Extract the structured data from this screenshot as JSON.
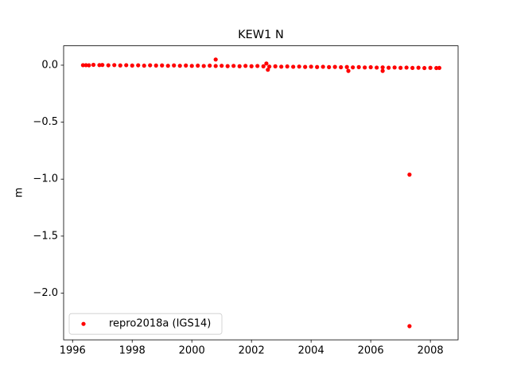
{
  "chart_data": {
    "type": "scatter",
    "title": "KEW1 N",
    "ylabel": "m",
    "xlim": [
      1995.7,
      2008.93
    ],
    "ylim": [
      -2.41,
      0.17
    ],
    "xticks": [
      1996,
      1998,
      2000,
      2002,
      2004,
      2006,
      2008
    ],
    "yticks": [
      {
        "value": 0,
        "label": "0.0"
      },
      {
        "value": -0.5,
        "label": "−0.5"
      },
      {
        "value": -1,
        "label": "−1.0"
      },
      {
        "value": -1.5,
        "label": "−1.5"
      },
      {
        "value": -2,
        "label": "−2.0"
      }
    ],
    "legend": "lower left",
    "grid": false,
    "series": [
      {
        "name": "repro2018a (IGS14)",
        "color": "#ff0000",
        "x": [
          1996.35,
          1996.45,
          1996.55,
          1996.7,
          1996.9,
          1997.0,
          1997.2,
          1997.4,
          1997.6,
          1997.8,
          1998.0,
          1998.2,
          1998.4,
          1998.6,
          1998.8,
          1999.0,
          1999.2,
          1999.4,
          1999.6,
          1999.8,
          2000.0,
          2000.2,
          2000.4,
          2000.6,
          2000.8,
          2001.0,
          2001.2,
          2001.4,
          2001.6,
          2001.8,
          2002.0,
          2002.2,
          2002.4,
          2002.6,
          2002.8,
          2003.0,
          2003.2,
          2003.4,
          2003.6,
          2003.8,
          2004.0,
          2004.2,
          2004.4,
          2004.6,
          2004.8,
          2005.0,
          2005.2,
          2005.4,
          2005.6,
          2005.8,
          2006.0,
          2006.2,
          2006.4,
          2006.6,
          2006.8,
          2007.0,
          2007.2,
          2007.4,
          2007.6,
          2007.8,
          2008.0,
          2008.2,
          2000.8,
          2002.5,
          2002.55,
          2005.25,
          2006.4,
          2007.3,
          2007.3,
          2008.3
        ],
        "values": [
          0.0,
          0.0,
          -0.001,
          0.003,
          0.001,
          0.002,
          -0.001,
          0.001,
          -0.002,
          0.0,
          -0.003,
          -0.001,
          -0.004,
          -0.001,
          -0.003,
          -0.002,
          -0.005,
          -0.002,
          -0.005,
          -0.003,
          -0.006,
          -0.004,
          -0.007,
          -0.004,
          -0.007,
          -0.005,
          -0.008,
          -0.006,
          -0.009,
          -0.006,
          -0.009,
          -0.007,
          -0.01,
          -0.012,
          -0.01,
          -0.013,
          -0.011,
          -0.014,
          -0.012,
          -0.015,
          -0.013,
          -0.016,
          -0.014,
          -0.017,
          -0.015,
          -0.018,
          -0.016,
          -0.019,
          -0.017,
          -0.02,
          -0.018,
          -0.021,
          -0.019,
          -0.022,
          -0.02,
          -0.023,
          -0.021,
          -0.024,
          -0.022,
          -0.025,
          -0.023,
          -0.025,
          0.05,
          0.015,
          -0.04,
          -0.05,
          -0.05,
          -0.96,
          -2.29,
          -0.024
        ]
      }
    ]
  }
}
